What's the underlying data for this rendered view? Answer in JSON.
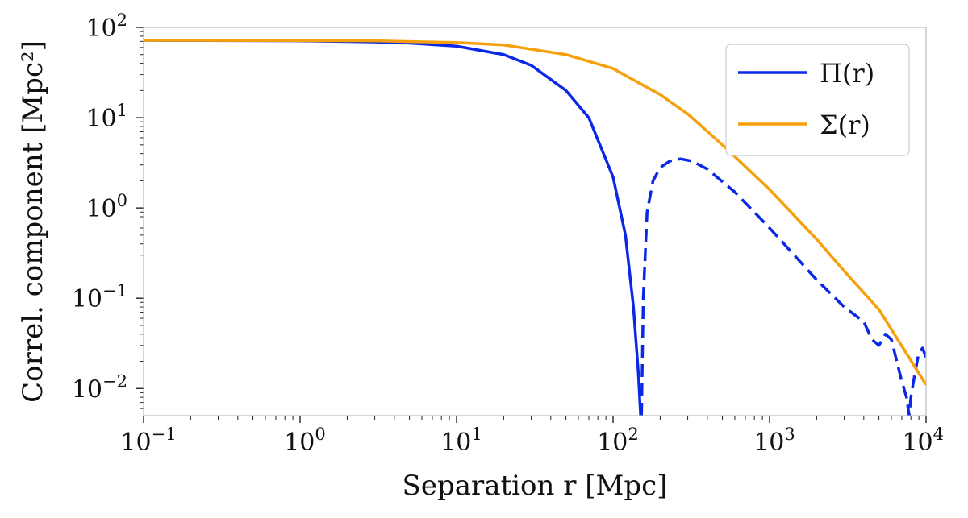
{
  "chart_data": {
    "type": "line",
    "title": "",
    "xlabel": "Separation r [Mpc]",
    "ylabel": "Correl. component [Mpc²]",
    "xscale": "log",
    "yscale": "log",
    "xlim": [
      0.1,
      10000
    ],
    "ylim": [
      0.005,
      100
    ],
    "grid": false,
    "legend_position": "top-right",
    "x_ticks": [
      {
        "value": 0.1,
        "base": "10",
        "exp": "−1"
      },
      {
        "value": 1,
        "base": "10",
        "exp": "0"
      },
      {
        "value": 10,
        "base": "10",
        "exp": "1"
      },
      {
        "value": 100,
        "base": "10",
        "exp": "2"
      },
      {
        "value": 1000,
        "base": "10",
        "exp": "3"
      },
      {
        "value": 10000,
        "base": "10",
        "exp": "4"
      }
    ],
    "y_ticks": [
      {
        "value": 0.01,
        "base": "10",
        "exp": "−2"
      },
      {
        "value": 0.1,
        "base": "10",
        "exp": "−1"
      },
      {
        "value": 1,
        "base": "10",
        "exp": "0"
      },
      {
        "value": 10,
        "base": "10",
        "exp": "1"
      },
      {
        "value": 100,
        "base": "10",
        "exp": "2"
      }
    ],
    "series": [
      {
        "name": "Π(r)",
        "color": "#0a28e6",
        "segments": [
          {
            "style": "solid",
            "x": [
              0.1,
              1,
              3,
              5,
              10,
              20,
              30,
              50,
              70,
              100,
              120,
              135,
              145,
              150
            ],
            "y": [
              72,
              71,
              69,
              67,
              62,
              50,
              38,
              20,
              10,
              2.2,
              0.5,
              0.08,
              0.015,
              0.005
            ]
          },
          {
            "style": "dashed",
            "x": [
              152,
              156,
              165,
              180,
              200,
              230,
              270,
              320,
              400,
              600,
              1000,
              2000,
              3000,
              4000,
              4500,
              5000,
              5500,
              6000,
              6500,
              7000,
              7500,
              7800,
              8000,
              8500,
              9000,
              9500,
              10000
            ],
            "y": [
              0.005,
              0.1,
              0.9,
              2.0,
              2.8,
              3.3,
              3.5,
              3.3,
              2.7,
              1.5,
              0.6,
              0.16,
              0.08,
              0.055,
              0.035,
              0.03,
              0.04,
              0.035,
              0.02,
              0.012,
              0.008,
              0.005,
              0.008,
              0.015,
              0.025,
              0.028,
              0.022
            ]
          }
        ]
      },
      {
        "name": "Σ(r)",
        "color": "#f5a00c",
        "segments": [
          {
            "style": "solid",
            "x": [
              0.1,
              1,
              3,
              10,
              20,
              50,
              100,
              200,
              300,
              500,
              1000,
              2000,
              3000,
              5000,
              10000
            ],
            "y": [
              72,
              71.5,
              71,
              68,
              64,
              50,
              35,
              18,
              11,
              5,
              1.6,
              0.45,
              0.2,
              0.075,
              0.011
            ]
          }
        ]
      }
    ]
  }
}
